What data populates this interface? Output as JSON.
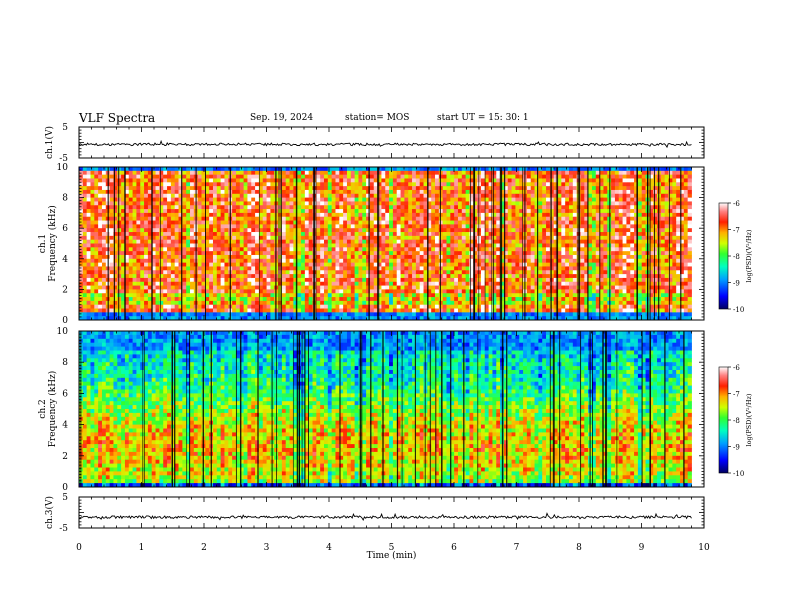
{
  "header": {
    "title": "VLF Spectra",
    "date": "Sep. 19, 2024",
    "station": "station= MOS",
    "start": "start  UT =   15: 30: 1"
  },
  "chart_data": [
    {
      "type": "line",
      "panel": "ch1-waveform",
      "ylabel": "ch.1(V)",
      "ylim": [
        -5,
        5
      ],
      "y_ticks": [
        "5",
        "-5"
      ],
      "x": [
        0,
        9.8
      ],
      "values": [
        -0.6,
        -0.6
      ]
    },
    {
      "type": "heatmap",
      "panel": "ch1-spectrogram",
      "ylabel_lines": [
        "ch.1",
        "Frequency (kHz)"
      ],
      "ylim": [
        0,
        10
      ],
      "y_ticks": [
        "0",
        "2",
        "4",
        "6",
        "8",
        "10"
      ],
      "colorbar": {
        "label": "log(PSD)(V²/Hz)",
        "ticks": [
          "-6",
          "-7",
          "-8",
          "-9",
          "-10"
        ],
        "range": [
          -10,
          -6
        ]
      }
    },
    {
      "type": "heatmap",
      "panel": "ch2-spectrogram",
      "ylabel_lines": [
        "ch.2",
        "Frequency (kHz)"
      ],
      "ylim": [
        0,
        10
      ],
      "y_ticks": [
        "0",
        "2",
        "4",
        "6",
        "8",
        "10"
      ],
      "colorbar": {
        "label": "log(PSD)(V²/Hz)",
        "ticks": [
          "-6",
          "-7",
          "-8",
          "-9",
          "-10"
        ],
        "range": [
          -10,
          -6
        ]
      }
    },
    {
      "type": "line",
      "panel": "ch3-waveform",
      "ylabel": "ch.3(V)",
      "ylim": [
        -5,
        5
      ],
      "y_ticks": [
        "5",
        "-5"
      ],
      "x": [
        0,
        9.8
      ],
      "values": [
        -1.5,
        -1.5
      ]
    }
  ],
  "xaxis": {
    "label": "Time  (min)",
    "range": [
      0,
      10
    ],
    "ticks": [
      "0",
      "1",
      "2",
      "3",
      "4",
      "5",
      "6",
      "7",
      "8",
      "9",
      "10"
    ]
  },
  "colors": {
    "scale": [
      "#00007a",
      "#0000ff",
      "#00a0ff",
      "#00ffd0",
      "#30ff30",
      "#c8ff00",
      "#ffd000",
      "#ff6000",
      "#ff0000",
      "#ff4040",
      "#ffb0b0",
      "#ffffff"
    ]
  }
}
